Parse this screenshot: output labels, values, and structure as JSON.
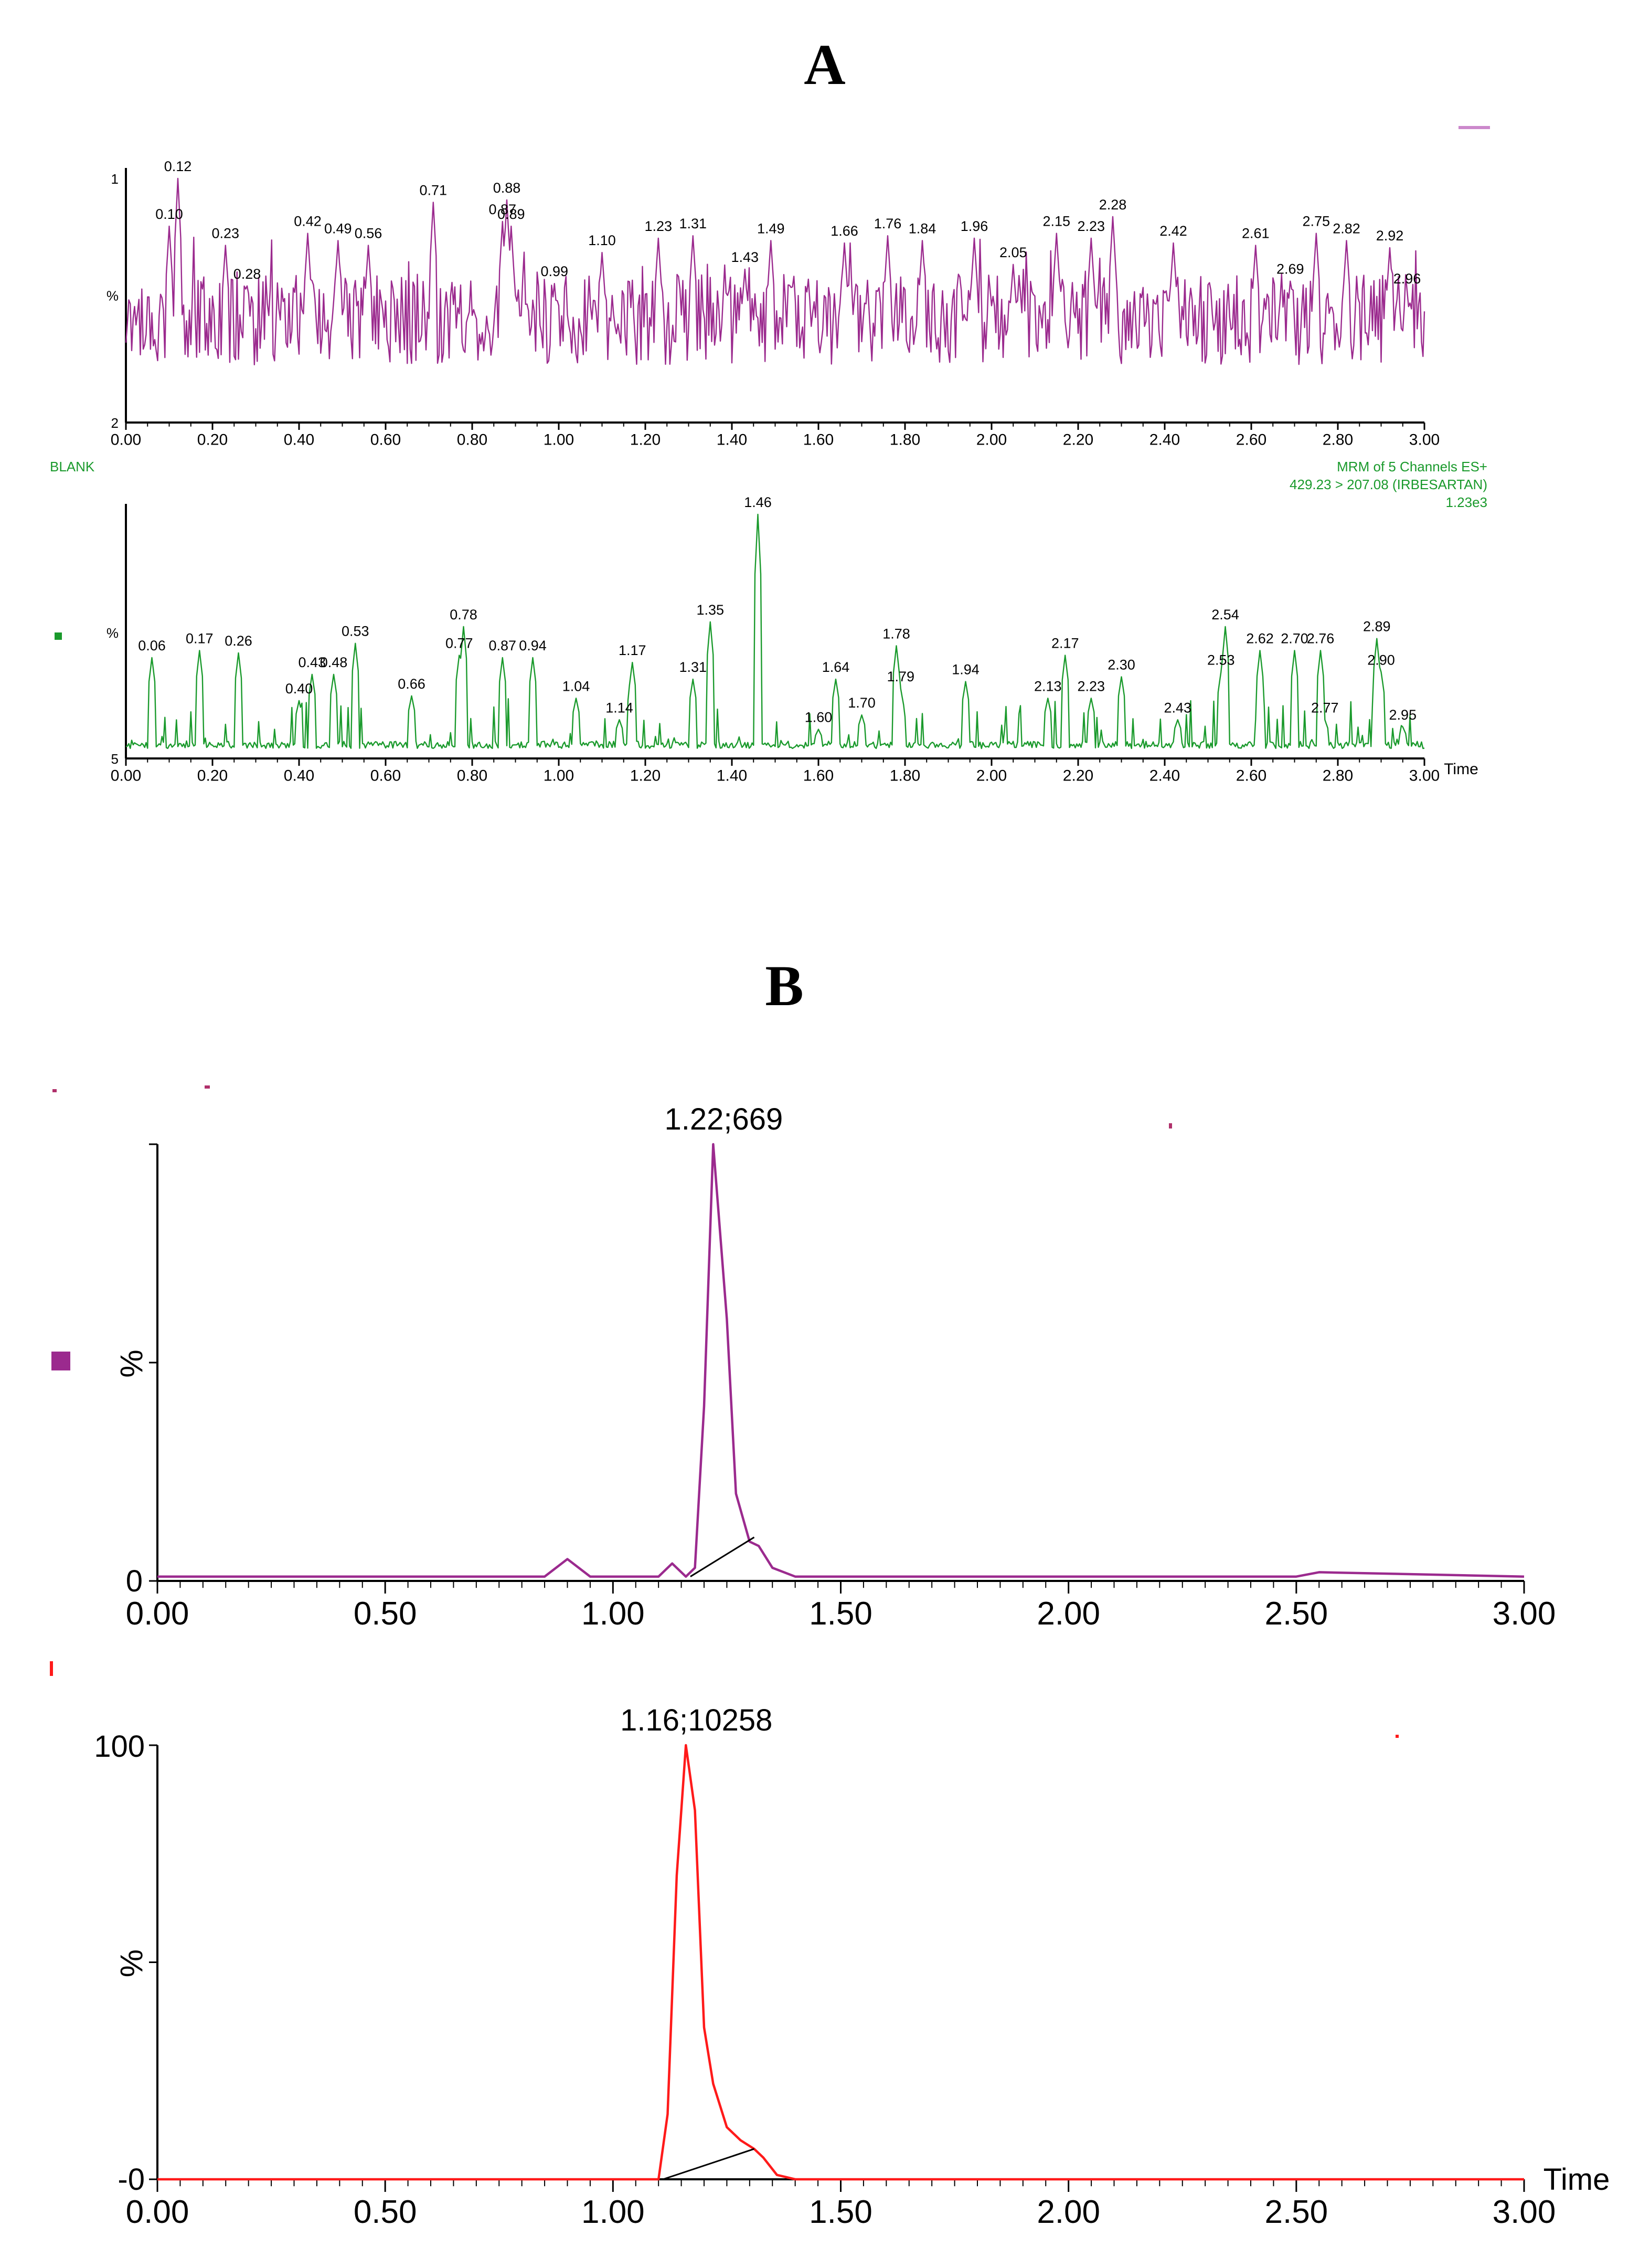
{
  "panel_labels": {
    "a": "A",
    "b": "B"
  },
  "colors": {
    "purple": "#9b2a8e",
    "green": "#1a9a2c",
    "red": "#ff1a1a",
    "axis": "#000000",
    "text": "#000000"
  },
  "chart_data": [
    {
      "id": "A-top",
      "type": "line",
      "xlim": [
        0,
        3
      ],
      "x_ticks": [
        "0.00",
        "0.20",
        "0.40",
        "0.60",
        "0.80",
        "1.00",
        "1.20",
        "1.40",
        "1.60",
        "1.80",
        "2.00",
        "2.20",
        "2.40",
        "2.60",
        "2.80",
        "3.00"
      ],
      "x_tick_values": [
        0,
        0.2,
        0.4,
        0.6,
        0.8,
        1.0,
        1.2,
        1.4,
        1.6,
        1.8,
        2.0,
        2.2,
        2.4,
        2.6,
        2.8,
        3.0
      ],
      "y_ticks": [
        "1",
        "%",
        "2"
      ],
      "peak_labels": [
        {
          "x": 0.1,
          "label": "0.10",
          "level": 0.8
        },
        {
          "x": 0.12,
          "label": "0.12",
          "level": 1.0
        },
        {
          "x": 0.23,
          "label": "0.23",
          "level": 0.72
        },
        {
          "x": 0.28,
          "label": "0.28",
          "level": 0.55
        },
        {
          "x": 0.42,
          "label": "0.42",
          "level": 0.77
        },
        {
          "x": 0.49,
          "label": "0.49",
          "level": 0.74
        },
        {
          "x": 0.56,
          "label": "0.56",
          "level": 0.72
        },
        {
          "x": 0.71,
          "label": "0.71",
          "level": 0.9
        },
        {
          "x": 0.87,
          "label": "0.87",
          "level": 0.82
        },
        {
          "x": 0.88,
          "label": "0.88",
          "level": 0.91
        },
        {
          "x": 0.89,
          "label": "0.89",
          "level": 0.8
        },
        {
          "x": 0.99,
          "label": "0.99",
          "level": 0.56
        },
        {
          "x": 1.1,
          "label": "1.10",
          "level": 0.69
        },
        {
          "x": 1.23,
          "label": "1.23",
          "level": 0.75
        },
        {
          "x": 1.31,
          "label": "1.31",
          "level": 0.76
        },
        {
          "x": 1.43,
          "label": "1.43",
          "level": 0.62
        },
        {
          "x": 1.49,
          "label": "1.49",
          "level": 0.74
        },
        {
          "x": 1.66,
          "label": "1.66",
          "level": 0.73
        },
        {
          "x": 1.76,
          "label": "1.76",
          "level": 0.76
        },
        {
          "x": 1.84,
          "label": "1.84",
          "level": 0.74
        },
        {
          "x": 1.96,
          "label": "1.96",
          "level": 0.75
        },
        {
          "x": 2.05,
          "label": "2.05",
          "level": 0.64
        },
        {
          "x": 2.15,
          "label": "2.15",
          "level": 0.77
        },
        {
          "x": 2.23,
          "label": "2.23",
          "level": 0.75
        },
        {
          "x": 2.28,
          "label": "2.28",
          "level": 0.84
        },
        {
          "x": 2.42,
          "label": "2.42",
          "level": 0.73
        },
        {
          "x": 2.61,
          "label": "2.61",
          "level": 0.72
        },
        {
          "x": 2.69,
          "label": "2.69",
          "level": 0.57
        },
        {
          "x": 2.75,
          "label": "2.75",
          "level": 0.77
        },
        {
          "x": 2.82,
          "label": "2.82",
          "level": 0.74
        },
        {
          "x": 2.92,
          "label": "2.92",
          "level": 0.71
        },
        {
          "x": 2.96,
          "label": "2.96",
          "level": 0.53
        }
      ],
      "noise_baseline_percent": 45
    },
    {
      "id": "A-bottom",
      "type": "line",
      "xlim": [
        0,
        3
      ],
      "x_ticks": [
        "0.00",
        "0.20",
        "0.40",
        "0.60",
        "0.80",
        "1.00",
        "1.20",
        "1.40",
        "1.60",
        "1.80",
        "2.00",
        "2.20",
        "2.40",
        "2.60",
        "2.80",
        "3.00"
      ],
      "x_tick_values": [
        0,
        0.2,
        0.4,
        0.6,
        0.8,
        1.0,
        1.2,
        1.4,
        1.6,
        1.8,
        2.0,
        2.2,
        2.4,
        2.6,
        2.8,
        3.0
      ],
      "xlabel": "Time",
      "y_ticks": [
        "%",
        "5"
      ],
      "trace_name": "BLANK",
      "title_lines": [
        "MRM of 5 Channels ES+",
        "429.23 > 207.08 (IRBESARTAN)",
        "1.23e3"
      ],
      "peak_labels": [
        {
          "x": 0.06,
          "label": "0.06",
          "level": 0.4
        },
        {
          "x": 0.17,
          "label": "0.17",
          "level": 0.43
        },
        {
          "x": 0.26,
          "label": "0.26",
          "level": 0.42
        },
        {
          "x": 0.4,
          "label": "0.40",
          "level": 0.22
        },
        {
          "x": 0.43,
          "label": "0.43",
          "level": 0.33
        },
        {
          "x": 0.48,
          "label": "0.48",
          "level": 0.33
        },
        {
          "x": 0.53,
          "label": "0.53",
          "level": 0.46
        },
        {
          "x": 0.66,
          "label": "0.66",
          "level": 0.24
        },
        {
          "x": 0.77,
          "label": "0.77",
          "level": 0.41
        },
        {
          "x": 0.78,
          "label": "0.78",
          "level": 0.53
        },
        {
          "x": 0.87,
          "label": "0.87",
          "level": 0.4
        },
        {
          "x": 0.94,
          "label": "0.94",
          "level": 0.4
        },
        {
          "x": 1.04,
          "label": "1.04",
          "level": 0.23
        },
        {
          "x": 1.14,
          "label": "1.14",
          "level": 0.14
        },
        {
          "x": 1.17,
          "label": "1.17",
          "level": 0.38
        },
        {
          "x": 1.31,
          "label": "1.31",
          "level": 0.31
        },
        {
          "x": 1.35,
          "label": "1.35",
          "level": 0.55
        },
        {
          "x": 1.46,
          "label": "1.46",
          "level": 1.0
        },
        {
          "x": 1.6,
          "label": "1.60",
          "level": 0.1
        },
        {
          "x": 1.64,
          "label": "1.64",
          "level": 0.31
        },
        {
          "x": 1.7,
          "label": "1.70",
          "level": 0.16
        },
        {
          "x": 1.78,
          "label": "1.78",
          "level": 0.45
        },
        {
          "x": 1.79,
          "label": "1.79",
          "level": 0.27
        },
        {
          "x": 1.94,
          "label": "1.94",
          "level": 0.3
        },
        {
          "x": 2.13,
          "label": "2.13",
          "level": 0.23
        },
        {
          "x": 2.17,
          "label": "2.17",
          "level": 0.41
        },
        {
          "x": 2.23,
          "label": "2.23",
          "level": 0.23
        },
        {
          "x": 2.3,
          "label": "2.30",
          "level": 0.32
        },
        {
          "x": 2.43,
          "label": "2.43",
          "level": 0.14
        },
        {
          "x": 2.53,
          "label": "2.53",
          "level": 0.34
        },
        {
          "x": 2.54,
          "label": "2.54",
          "level": 0.53
        },
        {
          "x": 2.62,
          "label": "2.62",
          "level": 0.43
        },
        {
          "x": 2.7,
          "label": "2.70",
          "level": 0.43
        },
        {
          "x": 2.76,
          "label": "2.76",
          "level": 0.43
        },
        {
          "x": 2.77,
          "label": "2.77",
          "level": 0.14
        },
        {
          "x": 2.89,
          "label": "2.89",
          "level": 0.48
        },
        {
          "x": 2.9,
          "label": "2.90",
          "level": 0.34
        },
        {
          "x": 2.95,
          "label": "2.95",
          "level": 0.11
        }
      ]
    },
    {
      "id": "B-top",
      "type": "line",
      "xlim": [
        0,
        3
      ],
      "ylim": [
        0,
        100
      ],
      "x_ticks": [
        "0.00",
        "0.50",
        "1.00",
        "1.50",
        "2.00",
        "2.50",
        "3.00"
      ],
      "x_tick_values": [
        0,
        0.5,
        1.0,
        1.5,
        2.0,
        2.5,
        3.0
      ],
      "y_ticks": [
        "%",
        "0"
      ],
      "peak_annotation": "1.22;669",
      "points": [
        [
          0.0,
          1
        ],
        [
          0.25,
          1
        ],
        [
          0.5,
          1
        ],
        [
          0.75,
          1
        ],
        [
          0.85,
          1
        ],
        [
          0.9,
          5
        ],
        [
          0.95,
          1
        ],
        [
          1.1,
          1
        ],
        [
          1.13,
          4
        ],
        [
          1.16,
          1
        ],
        [
          1.18,
          3
        ],
        [
          1.2,
          40
        ],
        [
          1.22,
          100
        ],
        [
          1.25,
          60
        ],
        [
          1.27,
          20
        ],
        [
          1.3,
          9
        ],
        [
          1.32,
          8
        ],
        [
          1.35,
          3
        ],
        [
          1.4,
          1
        ],
        [
          1.5,
          1
        ],
        [
          2.0,
          1
        ],
        [
          2.5,
          1
        ],
        [
          2.55,
          2
        ],
        [
          3.0,
          1
        ]
      ],
      "integration_line": [
        [
          1.17,
          1
        ],
        [
          1.31,
          10
        ]
      ]
    },
    {
      "id": "B-bottom",
      "type": "line",
      "xlim": [
        0,
        3
      ],
      "ylim": [
        0,
        100
      ],
      "x_ticks": [
        "0.00",
        "0.50",
        "1.00",
        "1.50",
        "2.00",
        "2.50",
        "3.00"
      ],
      "x_tick_values": [
        0,
        0.5,
        1.0,
        1.5,
        2.0,
        2.5,
        3.0
      ],
      "xlabel": "Time",
      "y_ticks": [
        "100",
        "%",
        "-0"
      ],
      "peak_annotation": "1.16;10258",
      "points": [
        [
          0.0,
          0
        ],
        [
          0.5,
          0
        ],
        [
          1.0,
          0
        ],
        [
          1.1,
          0
        ],
        [
          1.12,
          15
        ],
        [
          1.14,
          70
        ],
        [
          1.16,
          100
        ],
        [
          1.18,
          85
        ],
        [
          1.2,
          35
        ],
        [
          1.22,
          22
        ],
        [
          1.25,
          12
        ],
        [
          1.28,
          9
        ],
        [
          1.31,
          7
        ],
        [
          1.33,
          5
        ],
        [
          1.36,
          1
        ],
        [
          1.4,
          0
        ],
        [
          1.5,
          0
        ],
        [
          2.0,
          0
        ],
        [
          2.5,
          0
        ],
        [
          3.0,
          0
        ]
      ],
      "integration_line": [
        [
          1.11,
          0
        ],
        [
          1.31,
          7
        ]
      ]
    }
  ]
}
